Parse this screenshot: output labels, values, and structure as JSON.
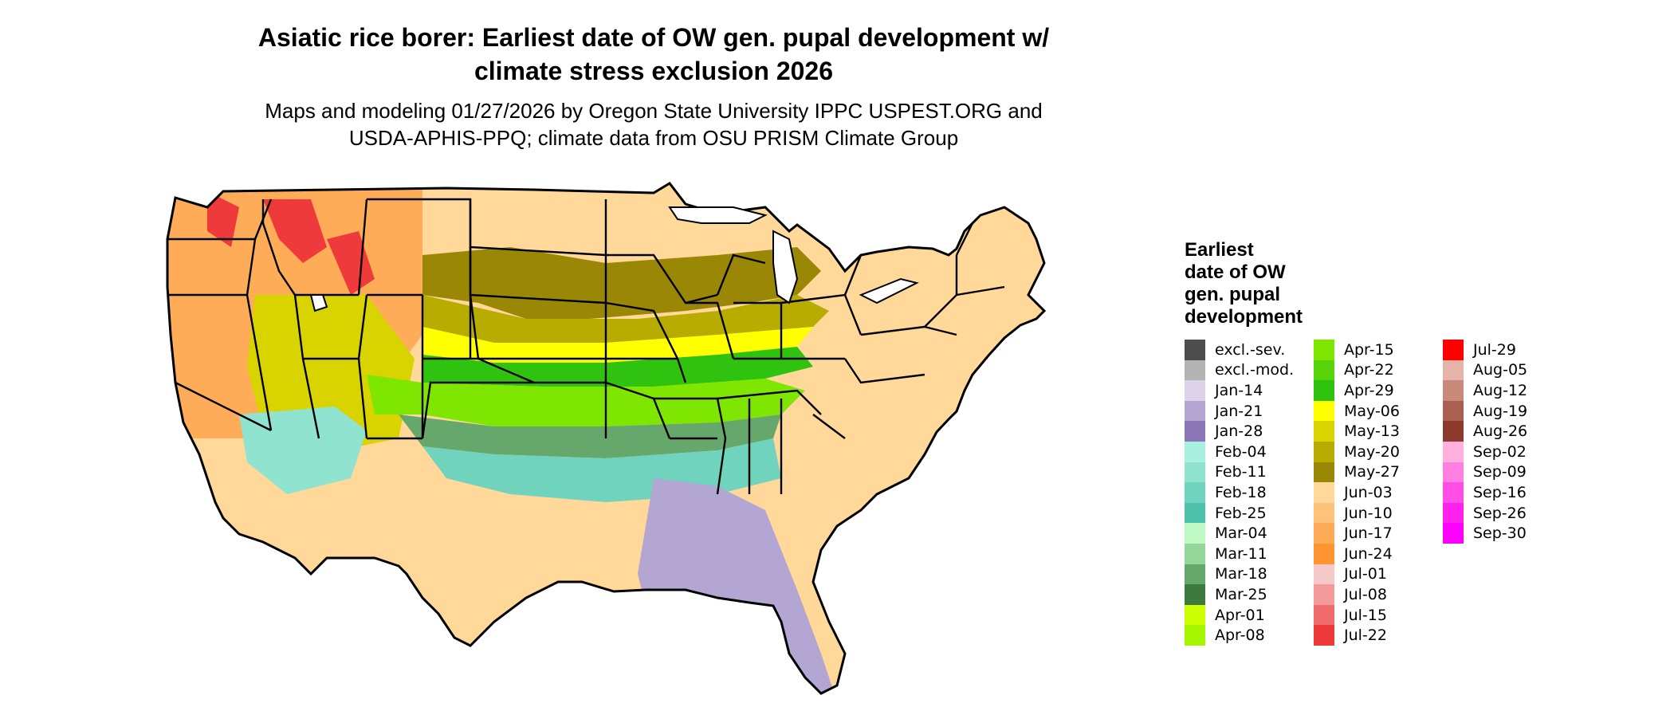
{
  "title_line1": "Asiatic rice borer: Earliest date of OW gen. pupal development w/",
  "title_line2": "climate stress exclusion 2026",
  "subtitle_line1": "Maps and modeling 01/27/2026 by Oregon State University IPPC USPEST.ORG and",
  "subtitle_line2": "USDA-APHIS-PPQ; climate data from OSU PRISM Climate Group",
  "legend": {
    "title_lines": [
      "Earliest",
      "date of OW",
      "gen. pupal",
      "development"
    ],
    "columns": [
      [
        {
          "label": "excl.-sev.",
          "color": "#4d4d4d"
        },
        {
          "label": "excl.-mod.",
          "color": "#b3b3b3"
        },
        {
          "label": "Jan-14",
          "color": "#dcd3ea"
        },
        {
          "label": "Jan-21",
          "color": "#b3a6d3"
        },
        {
          "label": "Jan-28",
          "color": "#8a76b4"
        },
        {
          "label": "Feb-04",
          "color": "#a9f0e1"
        },
        {
          "label": "Feb-11",
          "color": "#8fe3cf"
        },
        {
          "label": "Feb-18",
          "color": "#6fd3bd"
        },
        {
          "label": "Feb-25",
          "color": "#4ec2ab"
        },
        {
          "label": "Mar-04",
          "color": "#bff9c3"
        },
        {
          "label": "Mar-11",
          "color": "#95d69a"
        },
        {
          "label": "Mar-18",
          "color": "#66a86b"
        },
        {
          "label": "Mar-25",
          "color": "#3d7a3f"
        },
        {
          "label": "Apr-01",
          "color": "#ccff00"
        },
        {
          "label": "Apr-08",
          "color": "#a5f500"
        }
      ],
      [
        {
          "label": "Apr-15",
          "color": "#7ee600"
        },
        {
          "label": "Apr-22",
          "color": "#57d40a"
        },
        {
          "label": "Apr-29",
          "color": "#2fc20f"
        },
        {
          "label": "May-06",
          "color": "#ffff00"
        },
        {
          "label": "May-13",
          "color": "#d9d400"
        },
        {
          "label": "May-20",
          "color": "#b8ac00"
        },
        {
          "label": "May-27",
          "color": "#9a8705"
        },
        {
          "label": "Jun-03",
          "color": "#ffd89a"
        },
        {
          "label": "Jun-10",
          "color": "#ffc27a"
        },
        {
          "label": "Jun-17",
          "color": "#ffac58"
        },
        {
          "label": "Jun-24",
          "color": "#ff9433"
        },
        {
          "label": "Jul-01",
          "color": "#f6c8c8"
        },
        {
          "label": "Jul-08",
          "color": "#f49a9a"
        },
        {
          "label": "Jul-15",
          "color": "#f06c6c"
        },
        {
          "label": "Jul-22",
          "color": "#ee3a3a"
        }
      ],
      [
        {
          "label": "Jul-29",
          "color": "#ff0000"
        },
        {
          "label": "Aug-05",
          "color": "#e6b3aa"
        },
        {
          "label": "Aug-12",
          "color": "#c98a7c"
        },
        {
          "label": "Aug-19",
          "color": "#aa6050"
        },
        {
          "label": "Aug-26",
          "color": "#8b3a2b"
        },
        {
          "label": "Sep-02",
          "color": "#ffb0dd"
        },
        {
          "label": "Sep-09",
          "color": "#ff80e0"
        },
        {
          "label": "Sep-16",
          "color": "#ff4de6"
        },
        {
          "label": "Sep-26",
          "color": "#ff22ee"
        },
        {
          "label": "Sep-30",
          "color": "#ff00ff"
        }
      ]
    ]
  },
  "map_colors": {
    "ocean": "#ffffff",
    "border": "#000000",
    "north_plains": "#ffd89a",
    "mountain_west": "#ffac58",
    "high_peaks": "#ee3a3a",
    "corn_belt": "#9a8705",
    "mid_south": "#b8ac00",
    "central_band": "#ffff00",
    "tennessee_valley": "#2fc20f",
    "south_central": "#7ee600",
    "gulf_inland": "#66a86b",
    "gulf_coast": "#6fd3bd",
    "florida": "#b3a6d3",
    "southwest_desert": "#8fe3cf",
    "great_basin": "#d9d400"
  }
}
